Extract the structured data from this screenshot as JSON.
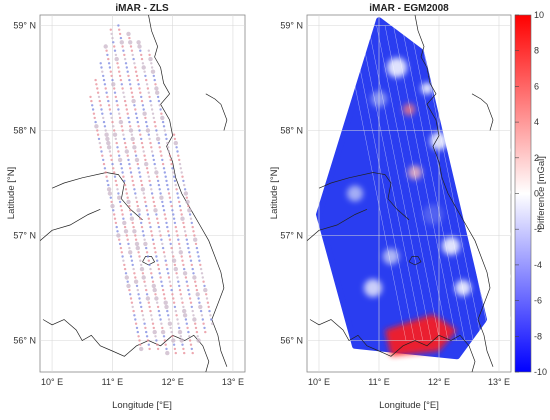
{
  "panels": [
    {
      "title": "iMAR - ZLS",
      "xlabel": "Longitude [°E]",
      "ylabel": "Latitude [°N]",
      "x_ticks": [
        {
          "v": 10,
          "t": "10° E"
        },
        {
          "v": 11,
          "t": "11° E"
        },
        {
          "v": 12,
          "t": "12° E"
        },
        {
          "v": 13,
          "t": "13° E"
        }
      ],
      "y_ticks": [
        {
          "v": 56,
          "t": "56° N"
        },
        {
          "v": 57,
          "t": "57° N"
        },
        {
          "v": 58,
          "t": "58° N"
        },
        {
          "v": 59,
          "t": "59° N"
        }
      ]
    },
    {
      "title": "iMAR - EGM2008",
      "xlabel": "Longitude [°E]",
      "ylabel": "Latitude [°N]",
      "x_ticks": [
        {
          "v": 10,
          "t": "10° E"
        },
        {
          "v": 11,
          "t": "11° E"
        },
        {
          "v": 12,
          "t": "12° E"
        },
        {
          "v": 13,
          "t": "13° E"
        }
      ],
      "y_ticks": [
        {
          "v": 56,
          "t": "56° N"
        },
        {
          "v": 57,
          "t": "57° N"
        },
        {
          "v": 58,
          "t": "58° N"
        },
        {
          "v": 59,
          "t": "59° N"
        }
      ]
    }
  ],
  "colorbar": {
    "label": "Difference [mGal]",
    "range": [
      -10,
      10
    ],
    "ticks": [
      "10",
      "8",
      "6",
      "4",
      "2",
      "0",
      "-2",
      "-4",
      "-6",
      "-8",
      "-10"
    ],
    "colormap": "blue-white-red",
    "colors": {
      "low": "#0000ff",
      "mid": "#ffffff",
      "high": "#ff0000"
    }
  },
  "map_extent": {
    "lon": [
      9.8,
      13.2
    ],
    "lat": [
      55.7,
      59.1
    ]
  },
  "colors": {
    "coastline": "#222222",
    "grid": "#d8d8d8",
    "frame": "#888888"
  }
}
